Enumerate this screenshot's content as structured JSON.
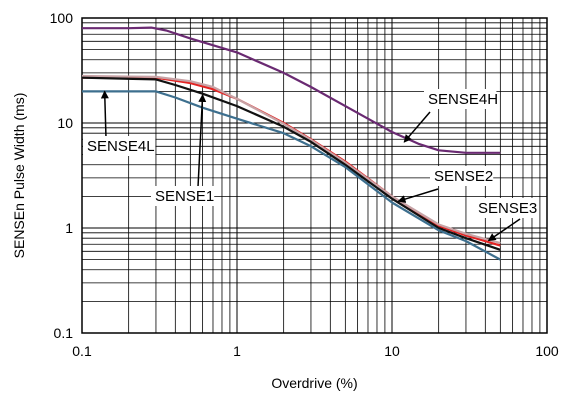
{
  "chart_data": {
    "type": "line",
    "xlabel": "Overdrive (%)",
    "ylabel": "SENSEn Pulse Width (ms)",
    "xscale": "log",
    "yscale": "log",
    "xlim": [
      0.1,
      100
    ],
    "ylim": [
      0.1,
      100
    ],
    "grid": true,
    "x_tick_labels": [
      "0.1",
      "1",
      "10",
      "100"
    ],
    "y_tick_labels": [
      "0.1",
      "1",
      "10",
      "100"
    ],
    "series": [
      {
        "name": "SENSE4H",
        "color": "#6a2a72",
        "points": [
          [
            0.1,
            80
          ],
          [
            0.2,
            80
          ],
          [
            0.28,
            81
          ],
          [
            0.35,
            76
          ],
          [
            0.5,
            64
          ],
          [
            1,
            47
          ],
          [
            2,
            30
          ],
          [
            3,
            22
          ],
          [
            5,
            14.5
          ],
          [
            10,
            8.2
          ],
          [
            15,
            6.3
          ],
          [
            20,
            5.5
          ],
          [
            30,
            5.2
          ],
          [
            50,
            5.2
          ]
        ]
      },
      {
        "name": "SENSE2",
        "color": "#e32222",
        "points": [
          [
            0.1,
            27
          ],
          [
            0.3,
            27
          ],
          [
            0.5,
            24
          ],
          [
            0.7,
            21
          ],
          [
            1,
            17
          ],
          [
            2,
            10
          ],
          [
            3,
            7
          ],
          [
            5,
            4.3
          ],
          [
            10,
            2
          ],
          [
            20,
            1.05
          ],
          [
            30,
            0.85
          ],
          [
            50,
            0.68
          ]
        ]
      },
      {
        "name": "SENSE3",
        "color": "#c7a3a6",
        "points": [
          [
            0.1,
            28
          ],
          [
            0.3,
            27.5
          ],
          [
            0.5,
            25
          ],
          [
            0.7,
            22
          ],
          [
            1,
            17
          ],
          [
            2,
            9.8
          ],
          [
            3,
            6.9
          ],
          [
            5,
            4.2
          ],
          [
            10,
            2.0
          ],
          [
            20,
            1.08
          ],
          [
            30,
            0.88
          ],
          [
            50,
            0.72
          ]
        ]
      },
      {
        "name": "SENSE1",
        "color": "#111111",
        "points": [
          [
            0.1,
            27
          ],
          [
            0.3,
            26
          ],
          [
            0.4,
            23
          ],
          [
            0.6,
            19
          ],
          [
            1,
            14.5
          ],
          [
            2,
            9.2
          ],
          [
            3,
            6.6
          ],
          [
            5,
            4.0
          ],
          [
            10,
            1.9
          ],
          [
            20,
            1.0
          ],
          [
            30,
            0.8
          ],
          [
            50,
            0.62
          ]
        ]
      },
      {
        "name": "SENSE4L",
        "color": "#3d6f8e",
        "points": [
          [
            0.1,
            20
          ],
          [
            0.3,
            20
          ],
          [
            0.4,
            17.5
          ],
          [
            0.6,
            14
          ],
          [
            1,
            11
          ],
          [
            2,
            8
          ],
          [
            3,
            6
          ],
          [
            5,
            3.8
          ],
          [
            10,
            1.75
          ],
          [
            20,
            0.95
          ],
          [
            30,
            0.75
          ],
          [
            50,
            0.5
          ]
        ]
      }
    ],
    "annotations": [
      {
        "text": "SENSE4H",
        "target": [
          12,
          6.6
        ]
      },
      {
        "text": "SENSE2",
        "target": [
          11,
          1.8
        ]
      },
      {
        "text": "SENSE3",
        "target": [
          42,
          0.76
        ]
      },
      {
        "text": "SENSE1",
        "target": [
          0.6,
          18.5
        ]
      },
      {
        "text": "SENSE4L",
        "target": [
          0.14,
          20
        ]
      }
    ]
  }
}
